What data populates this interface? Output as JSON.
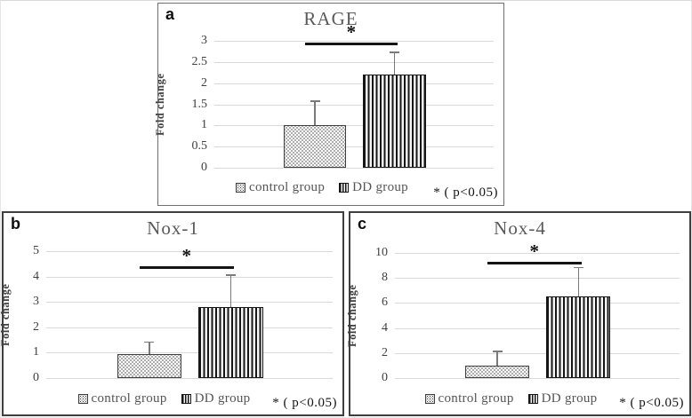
{
  "style": {
    "background": "#ffffff",
    "grid_color": "#d9d9d9",
    "title_color": "#595959",
    "tick_color": "#404040",
    "bar_edge_color": "#3f3f3f",
    "stripe_color": "#161616",
    "error_bar_color": "#7a7a7a",
    "significance_color": "#141414"
  },
  "chart_data": [
    {
      "type": "bar",
      "panel_label": "a",
      "title": "RAGE",
      "ylabel": "Fold change",
      "categories": [
        "control group",
        "DD group"
      ],
      "values": [
        1.0,
        2.2
      ],
      "errors_up": [
        0.6,
        0.55
      ],
      "ylim": [
        0,
        3
      ],
      "yticks": [
        0,
        0.5,
        1,
        1.5,
        2,
        2.5,
        3
      ],
      "grid": true,
      "legend_position": "bottom",
      "bar_patterns": [
        "dotted",
        "vertical-stripes"
      ],
      "significance": {
        "label": "*",
        "y": 2.95
      },
      "sig_note": "* ( p<0.05)"
    },
    {
      "type": "bar",
      "panel_label": "b",
      "title": "Nox-1",
      "ylabel": "Fold change",
      "categories": [
        "control group",
        "DD group"
      ],
      "values": [
        0.95,
        2.8
      ],
      "errors_up": [
        0.5,
        1.3
      ],
      "ylim": [
        0,
        5
      ],
      "yticks": [
        0,
        1,
        2,
        3,
        4,
        5
      ],
      "grid": true,
      "legend_position": "bottom",
      "bar_patterns": [
        "dotted",
        "vertical-stripes"
      ],
      "significance": {
        "label": "*",
        "y": 4.4
      },
      "sig_note": "* ( p<0.05)"
    },
    {
      "type": "bar",
      "panel_label": "c",
      "title": "Nox-4",
      "ylabel": "Fold change",
      "categories": [
        "control group",
        "DD group"
      ],
      "values": [
        1.0,
        6.5
      ],
      "errors_up": [
        1.2,
        2.4
      ],
      "ylim": [
        0,
        10
      ],
      "yticks": [
        0,
        2,
        4,
        6,
        8,
        10
      ],
      "grid": true,
      "legend_position": "bottom",
      "bar_patterns": [
        "dotted",
        "vertical-stripes"
      ],
      "significance": {
        "label": "*",
        "y": 9.3
      },
      "sig_note": "* ( p<0.05)"
    }
  ]
}
